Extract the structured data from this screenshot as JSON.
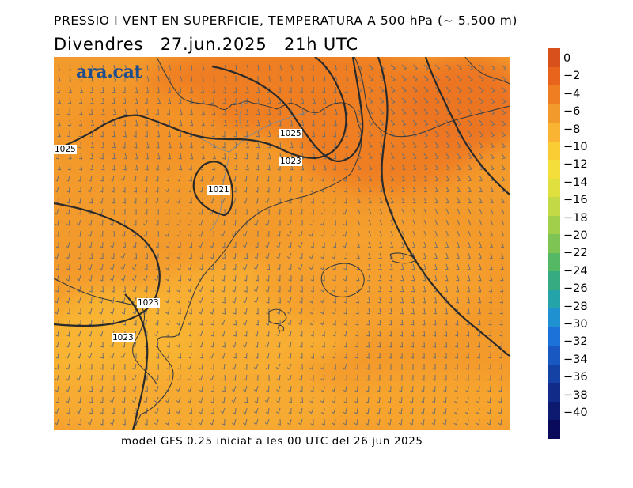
{
  "title": "PRESSIO I VENT EN SUPERFICIE, TEMPERATURA A 500 hPa (~ 5.500 m)",
  "subtitle": {
    "day": "Divendres",
    "date": "27.jun.2025",
    "time": "21h UTC"
  },
  "footer": "model GFS 0.25 iniciat a les 00 UTC del 26 jun 2025",
  "logo": "ara.cat",
  "colorbar": {
    "labels": [
      "0",
      "−2",
      "−4",
      "−6",
      "−8",
      "−10",
      "−12",
      "−14",
      "−16",
      "−18",
      "−20",
      "−22",
      "−24",
      "−26",
      "−28",
      "−30",
      "−32",
      "−34",
      "−36",
      "−38",
      "−40"
    ],
    "colors": [
      "#d8501c",
      "#e8641c",
      "#ef7e22",
      "#f39a2c",
      "#f8b432",
      "#fbcd34",
      "#f3de3a",
      "#dfe040",
      "#c3d945",
      "#a2cf4a",
      "#7ec454",
      "#55b865",
      "#36ab82",
      "#24a3a8",
      "#1f90d0",
      "#1c72d8",
      "#1958c0",
      "#1442a4",
      "#102c88",
      "#0c1a70",
      "#0a0a5a"
    ]
  },
  "isobar_labels": [
    "1025",
    "1025",
    "1023",
    "1021",
    "1023",
    "1023"
  ]
}
